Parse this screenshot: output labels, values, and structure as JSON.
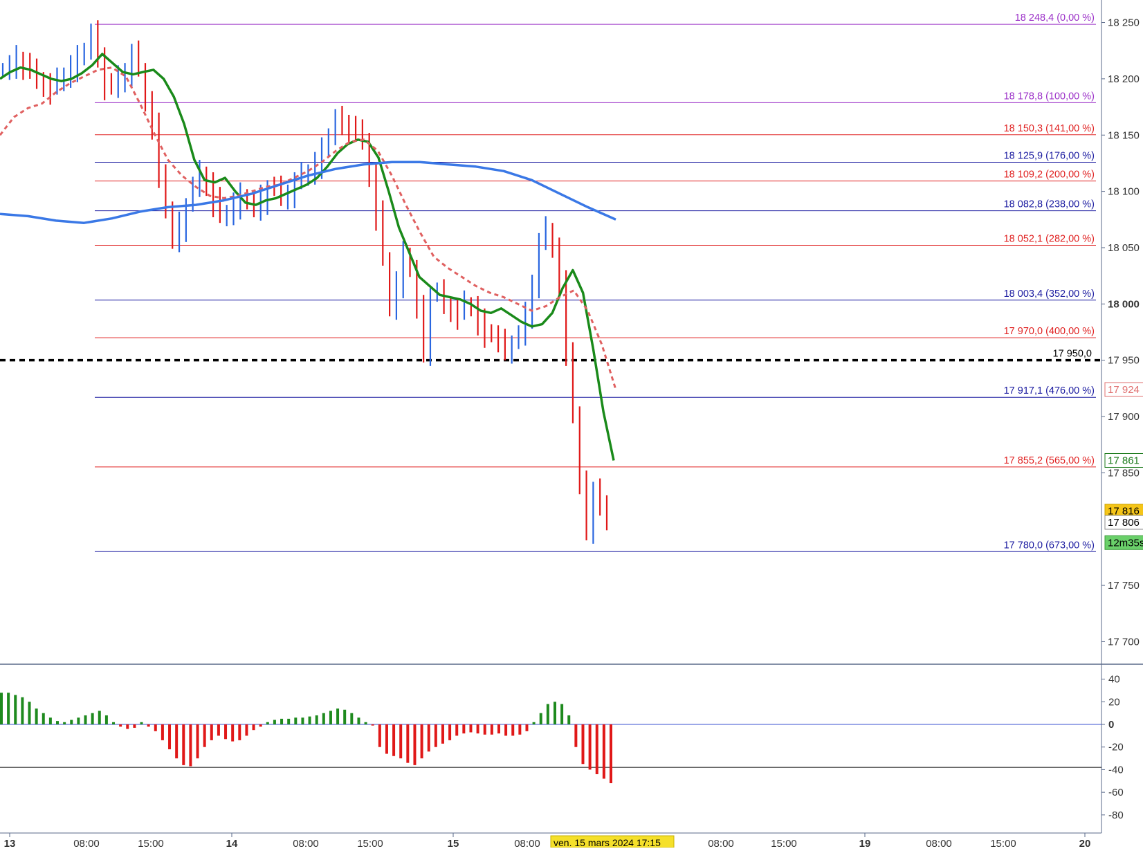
{
  "chart_data": [
    {
      "type": "line",
      "panel": "price",
      "title": "",
      "ylim": [
        17680,
        18270
      ],
      "y_ticks": [
        {
          "value": 18250,
          "label": "18 250"
        },
        {
          "value": 18200,
          "label": "18 200"
        },
        {
          "value": 18150,
          "label": "18 150"
        },
        {
          "value": 18100,
          "label": "18 100"
        },
        {
          "value": 18050,
          "label": "18 050"
        },
        {
          "value": 18000,
          "label": "18 000",
          "bold": true
        },
        {
          "value": 17950,
          "label": "17 950"
        },
        {
          "value": 17900,
          "label": "17 900"
        },
        {
          "value": 17850,
          "label": "17 850"
        },
        {
          "value": 17750,
          "label": "17 750"
        },
        {
          "value": 17700,
          "label": "17 700"
        }
      ],
      "x_ticks": [
        {
          "label": "13",
          "bold": true
        },
        {
          "label": "08:00"
        },
        {
          "label": "15:00"
        },
        {
          "label": "14",
          "bold": true
        },
        {
          "label": "08:00"
        },
        {
          "label": "15:00"
        },
        {
          "label": "15",
          "bold": true
        },
        {
          "label": "08:00"
        },
        {
          "label": "08:00"
        },
        {
          "label": "15:00"
        },
        {
          "label": "19",
          "bold": true
        },
        {
          "label": "08:00"
        },
        {
          "label": "15:00"
        },
        {
          "label": "20",
          "bold": true
        }
      ],
      "cursor_date_label": "ven. 15 mars 2024 17:15",
      "fibonacci_levels": [
        {
          "value": 18248.4,
          "label": "18 248,4 (0,00 %)",
          "color": "#9b30c8"
        },
        {
          "value": 18178.8,
          "label": "18 178,8 (100,00 %)",
          "color": "#9b30c8"
        },
        {
          "value": 18150.3,
          "label": "18 150,3 (141,00 %)",
          "color": "#e02020"
        },
        {
          "value": 18125.9,
          "label": "18 125,9 (176,00 %)",
          "color": "#1a1aa0"
        },
        {
          "value": 18109.2,
          "label": "18 109,2 (200,00 %)",
          "color": "#e02020"
        },
        {
          "value": 18082.8,
          "label": "18 082,8 (238,00 %)",
          "color": "#1a1aa0"
        },
        {
          "value": 18052.1,
          "label": "18 052,1 (282,00 %)",
          "color": "#e02020"
        },
        {
          "value": 18003.4,
          "label": "18 003,4 (352,00 %)",
          "color": "#1a1aa0"
        },
        {
          "value": 17970.0,
          "label": "17 970,0 (400,00 %)",
          "color": "#e02020"
        },
        {
          "value": 17917.1,
          "label": "17 917,1 (476,00 %)",
          "color": "#1a1aa0"
        },
        {
          "value": 17855.2,
          "label": "17 855,2 (565,00 %)",
          "color": "#e02020"
        },
        {
          "value": 17780.0,
          "label": "17 780,0 (673,00 %)",
          "color": "#1a1aa0"
        }
      ],
      "horizontal_line": {
        "value": 17950.0,
        "label": "17 950,0",
        "style": "dashed",
        "color": "#000000"
      },
      "axis_markers": [
        {
          "label": "17 924",
          "value": 17924,
          "bg": "#ffffff",
          "fg": "#e07070",
          "border": "#e07070"
        },
        {
          "label": "17 861",
          "value": 17861,
          "bg": "#ffffff",
          "fg": "#1b7a1b",
          "border": "#1b7a1b"
        },
        {
          "label": "17 816",
          "value": 17816,
          "bg": "#f5c518",
          "fg": "#000000",
          "border": "#c8a000"
        },
        {
          "label": "17 806",
          "value": 17806,
          "bg": "#ffffff",
          "fg": "#000000",
          "border": "#888888"
        },
        {
          "label": "12m35s",
          "value": 17788,
          "bg": "#6ad06a",
          "fg": "#000000",
          "border": "#3a9a3a"
        }
      ],
      "series": [
        {
          "kind": "price",
          "style": "bars",
          "colors": {
            "up": "#2a66e0",
            "down": "#e01818"
          },
          "values": [
            18208,
            18212,
            18218,
            18214,
            18206,
            18200,
            18196,
            18192,
            18198,
            18204,
            18212,
            18218,
            18226,
            18240,
            18222,
            18196,
            18192,
            18200,
            18208,
            18222,
            18208,
            18180,
            18158,
            18118,
            18082,
            18058,
            18070,
            18088,
            18104,
            18116,
            18108,
            18092,
            18078,
            18082,
            18090,
            18096,
            18090,
            18086,
            18094,
            18104,
            18102,
            18096,
            18100,
            18108,
            18114,
            18118,
            18126,
            18136,
            18150,
            18164,
            18162,
            18158,
            18152,
            18146,
            18116,
            18080,
            18040,
            17998,
            18020,
            18044,
            18030,
            17996,
            17960,
            18008,
            18010,
            18000,
            17996,
            17992,
            18000,
            17998,
            17984,
            17976,
            17972,
            17966,
            17962,
            17966,
            17972,
            17990,
            18020,
            18054,
            18066,
            18050,
            18018,
            17960,
            17900,
            17840,
            17802,
            17836,
            17818,
            17808
          ]
        },
        {
          "kind": "moving_average",
          "style": "solid",
          "color": "#1a8a1a",
          "values": [
            18200,
            18206,
            18210,
            18208,
            18204,
            18200,
            18198,
            18200,
            18205,
            18212,
            18222,
            18214,
            18206,
            18204,
            18206,
            18208,
            18200,
            18184,
            18160,
            18128,
            18110,
            18108,
            18112,
            18100,
            18090,
            18088,
            18092,
            18094,
            18098,
            18102,
            18106,
            18112,
            18122,
            18134,
            18142,
            18146,
            18144,
            18130,
            18100,
            18068,
            18046,
            18024,
            18016,
            18008,
            18006,
            18004,
            18000,
            17994,
            17992,
            17996,
            17990,
            17984,
            17980,
            17982,
            17992,
            18014,
            18030,
            18010,
            17960,
            17904,
            17861
          ]
        },
        {
          "kind": "moving_average",
          "style": "dashed",
          "color": "#e06060",
          "values": [
            18150,
            18166,
            18174,
            18178,
            18188,
            18196,
            18202,
            18208,
            18210,
            18202,
            18178,
            18152,
            18128,
            18114,
            18104,
            18096,
            18094,
            18096,
            18100,
            18104,
            18106,
            18112,
            18118,
            18126,
            18136,
            18144,
            18146,
            18136,
            18114,
            18088,
            18064,
            18042,
            18032,
            18024,
            18016,
            18010,
            18006,
            18000,
            17994,
            17998,
            18006,
            18012,
            17994,
            17964,
            17924
          ]
        },
        {
          "kind": "moving_average",
          "style": "solid",
          "color": "#3a78e6",
          "values": [
            18080,
            18078,
            18074,
            18072,
            18076,
            18082,
            18086,
            18088,
            18092,
            18098,
            18106,
            18114,
            18120,
            18124,
            18126,
            18126,
            18124,
            18122,
            18118,
            18110,
            18098,
            18086,
            18075
          ]
        }
      ]
    },
    {
      "type": "bar",
      "panel": "oscillator",
      "ylim": [
        -96,
        52
      ],
      "y_ticks": [
        {
          "value": 40,
          "label": "40"
        },
        {
          "value": 20,
          "label": "20"
        },
        {
          "value": 0,
          "label": "0",
          "bold": true
        },
        {
          "value": -20,
          "label": "-20"
        },
        {
          "value": -40,
          "label": "-40"
        },
        {
          "value": -60,
          "label": "-60"
        },
        {
          "value": -80,
          "label": "-80"
        }
      ],
      "reference_lines": [
        {
          "value": 0,
          "color": "#3a50d0"
        },
        {
          "value": -38,
          "color": "#000000"
        }
      ],
      "colors": {
        "positive": "#1e8a1e",
        "negative": "#e01818"
      },
      "values": [
        28,
        28,
        26,
        24,
        20,
        14,
        10,
        6,
        3,
        2,
        4,
        6,
        8,
        10,
        12,
        8,
        2,
        -2,
        -4,
        -3,
        2,
        -2,
        -6,
        -14,
        -22,
        -30,
        -36,
        -37,
        -30,
        -20,
        -14,
        -10,
        -13,
        -15,
        -14,
        -10,
        -5,
        -2,
        2,
        4,
        5,
        5,
        6,
        6,
        7,
        8,
        10,
        12,
        14,
        13,
        10,
        6,
        2,
        -1,
        -20,
        -26,
        -28,
        -30,
        -34,
        -36,
        -30,
        -24,
        -20,
        -17,
        -14,
        -10,
        -8,
        -7,
        -8,
        -9,
        -9,
        -8,
        -10,
        -10,
        -9,
        -6,
        2,
        10,
        18,
        20,
        18,
        8,
        -20,
        -35,
        -40,
        -44,
        -48,
        -52
      ]
    }
  ]
}
